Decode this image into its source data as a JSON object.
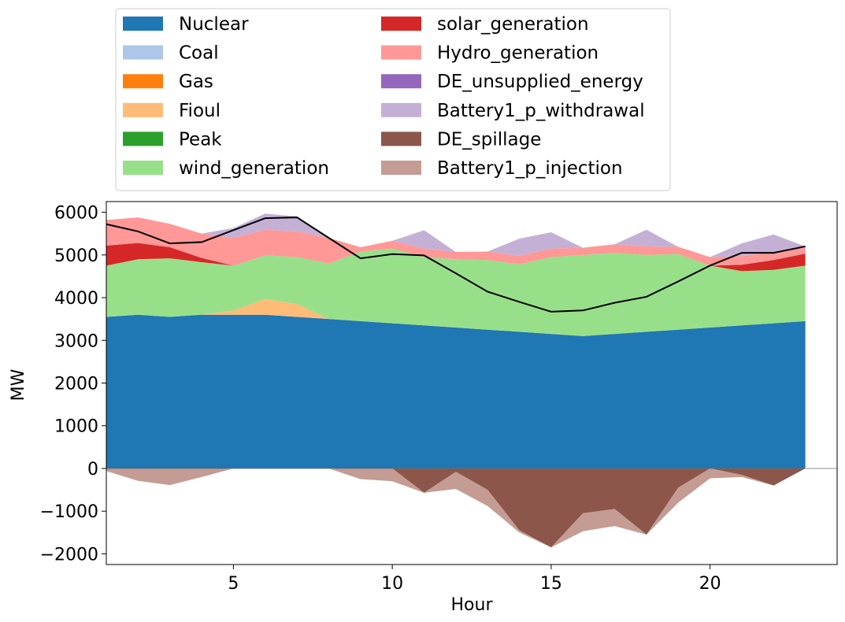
{
  "chart_data": {
    "type": "area",
    "stacked": true,
    "xlabel": "Hour",
    "ylabel": "MW",
    "xlim": [
      1,
      24
    ],
    "ylim": [
      -2250,
      6250
    ],
    "xticks": [
      5,
      10,
      15,
      20
    ],
    "yticks": [
      -2000,
      -1000,
      0,
      1000,
      2000,
      3000,
      4000,
      5000,
      6000
    ],
    "ytick_labels": [
      "−2000",
      "−1000",
      "0",
      "1000",
      "2000",
      "3000",
      "4000",
      "5000",
      "6000"
    ],
    "legend_position": "above plot, two columns",
    "x": [
      1,
      2,
      3,
      4,
      5,
      6,
      7,
      8,
      9,
      10,
      11,
      12,
      13,
      14,
      15,
      16,
      17,
      18,
      19,
      20,
      21,
      22,
      23
    ],
    "positive_series": [
      {
        "name": "Nuclear",
        "color": "#1f77b4",
        "values": [
          3550,
          3600,
          3550,
          3600,
          3600,
          3600,
          3550,
          3500,
          3450,
          3400,
          3350,
          3300,
          3250,
          3200,
          3150,
          3100,
          3150,
          3200,
          3250,
          3300,
          3350,
          3400,
          3450
        ]
      },
      {
        "name": "Coal",
        "color": "#aec7e8",
        "values": [
          0,
          0,
          0,
          0,
          0,
          0,
          0,
          0,
          0,
          0,
          0,
          0,
          0,
          0,
          0,
          0,
          0,
          0,
          0,
          0,
          0,
          0,
          0
        ]
      },
      {
        "name": "Gas",
        "color": "#ff7f0e",
        "values": [
          0,
          0,
          0,
          0,
          0,
          0,
          0,
          0,
          0,
          0,
          0,
          0,
          0,
          0,
          0,
          0,
          0,
          0,
          0,
          0,
          0,
          0,
          0
        ]
      },
      {
        "name": "Fioul",
        "color": "#ffbb78",
        "values": [
          0,
          0,
          0,
          0,
          100,
          370,
          300,
          0,
          0,
          0,
          0,
          0,
          0,
          0,
          0,
          0,
          0,
          0,
          0,
          0,
          0,
          0,
          0
        ]
      },
      {
        "name": "Peak",
        "color": "#2ca02c",
        "values": [
          0,
          0,
          0,
          0,
          0,
          0,
          0,
          0,
          0,
          0,
          0,
          0,
          0,
          0,
          0,
          0,
          0,
          0,
          0,
          0,
          0,
          0,
          0
        ]
      },
      {
        "name": "wind_generation",
        "color": "#98df8a",
        "values": [
          1200,
          1300,
          1370,
          1230,
          1050,
          1020,
          1100,
          1300,
          1630,
          1750,
          1600,
          1600,
          1630,
          1580,
          1800,
          1900,
          1900,
          1800,
          1770,
          1450,
          1270,
          1250,
          1300
        ]
      },
      {
        "name": "solar_generation",
        "color": "#d62728",
        "values": [
          470,
          380,
          260,
          100,
          0,
          0,
          0,
          0,
          0,
          0,
          0,
          0,
          0,
          0,
          0,
          0,
          0,
          0,
          0,
          0,
          150,
          230,
          280
        ]
      },
      {
        "name": "Hydro_generation",
        "color": "#ff9896",
        "values": [
          600,
          600,
          550,
          570,
          650,
          600,
          600,
          600,
          100,
          180,
          200,
          170,
          200,
          200,
          200,
          170,
          200,
          200,
          170,
          200,
          200,
          200,
          170
        ]
      },
      {
        "name": "DE_unsupplied_energy",
        "color": "#9467bd",
        "values": [
          0,
          0,
          0,
          0,
          0,
          0,
          0,
          0,
          0,
          0,
          0,
          0,
          0,
          0,
          0,
          0,
          0,
          0,
          0,
          0,
          0,
          0,
          0
        ]
      },
      {
        "name": "Battery1_p_withdrawal",
        "color": "#c5b0d5",
        "values": [
          0,
          0,
          0,
          0,
          230,
          380,
          350,
          0,
          0,
          0,
          430,
          0,
          0,
          400,
          380,
          0,
          0,
          390,
          0,
          0,
          300,
          400,
          0
        ]
      }
    ],
    "negative_series": [
      {
        "name": "DE_spillage",
        "color": "#8c564b",
        "values": [
          0,
          0,
          0,
          0,
          0,
          0,
          0,
          0,
          0,
          0,
          -570,
          -80,
          -500,
          -1450,
          -1850,
          -1050,
          -950,
          -1550,
          -450,
          0,
          -150,
          -400,
          0
        ]
      },
      {
        "name": "Battery1_p_injection",
        "color": "#c49c94",
        "values": [
          -60,
          -290,
          -390,
          -200,
          0,
          0,
          0,
          0,
          -250,
          -300,
          0,
          -400,
          -380,
          -50,
          0,
          -420,
          -400,
          0,
          -350,
          -230,
          -50,
          0,
          0
        ]
      }
    ],
    "line_series": {
      "name": "",
      "color": "#000000",
      "values": [
        5720,
        5550,
        5270,
        5300,
        5580,
        5860,
        5880,
        5400,
        4920,
        5020,
        4990,
        4570,
        4140,
        3900,
        3670,
        3700,
        3880,
        4020,
        4380,
        4750,
        5050,
        5050,
        5200
      ]
    },
    "legend": {
      "entries": [
        {
          "name": "Nuclear",
          "color": "#1f77b4"
        },
        {
          "name": "Coal",
          "color": "#aec7e8"
        },
        {
          "name": "Gas",
          "color": "#ff7f0e"
        },
        {
          "name": "Fioul",
          "color": "#ffbb78"
        },
        {
          "name": "Peak",
          "color": "#2ca02c"
        },
        {
          "name": "wind_generation",
          "color": "#98df8a"
        },
        {
          "name": "solar_generation",
          "color": "#d62728"
        },
        {
          "name": "Hydro_generation",
          "color": "#ff9896"
        },
        {
          "name": "DE_unsupplied_energy",
          "color": "#9467bd"
        },
        {
          "name": "Battery1_p_withdrawal",
          "color": "#c5b0d5"
        },
        {
          "name": "DE_spillage",
          "color": "#8c564b"
        },
        {
          "name": "Battery1_p_injection",
          "color": "#c49c94"
        }
      ]
    }
  }
}
